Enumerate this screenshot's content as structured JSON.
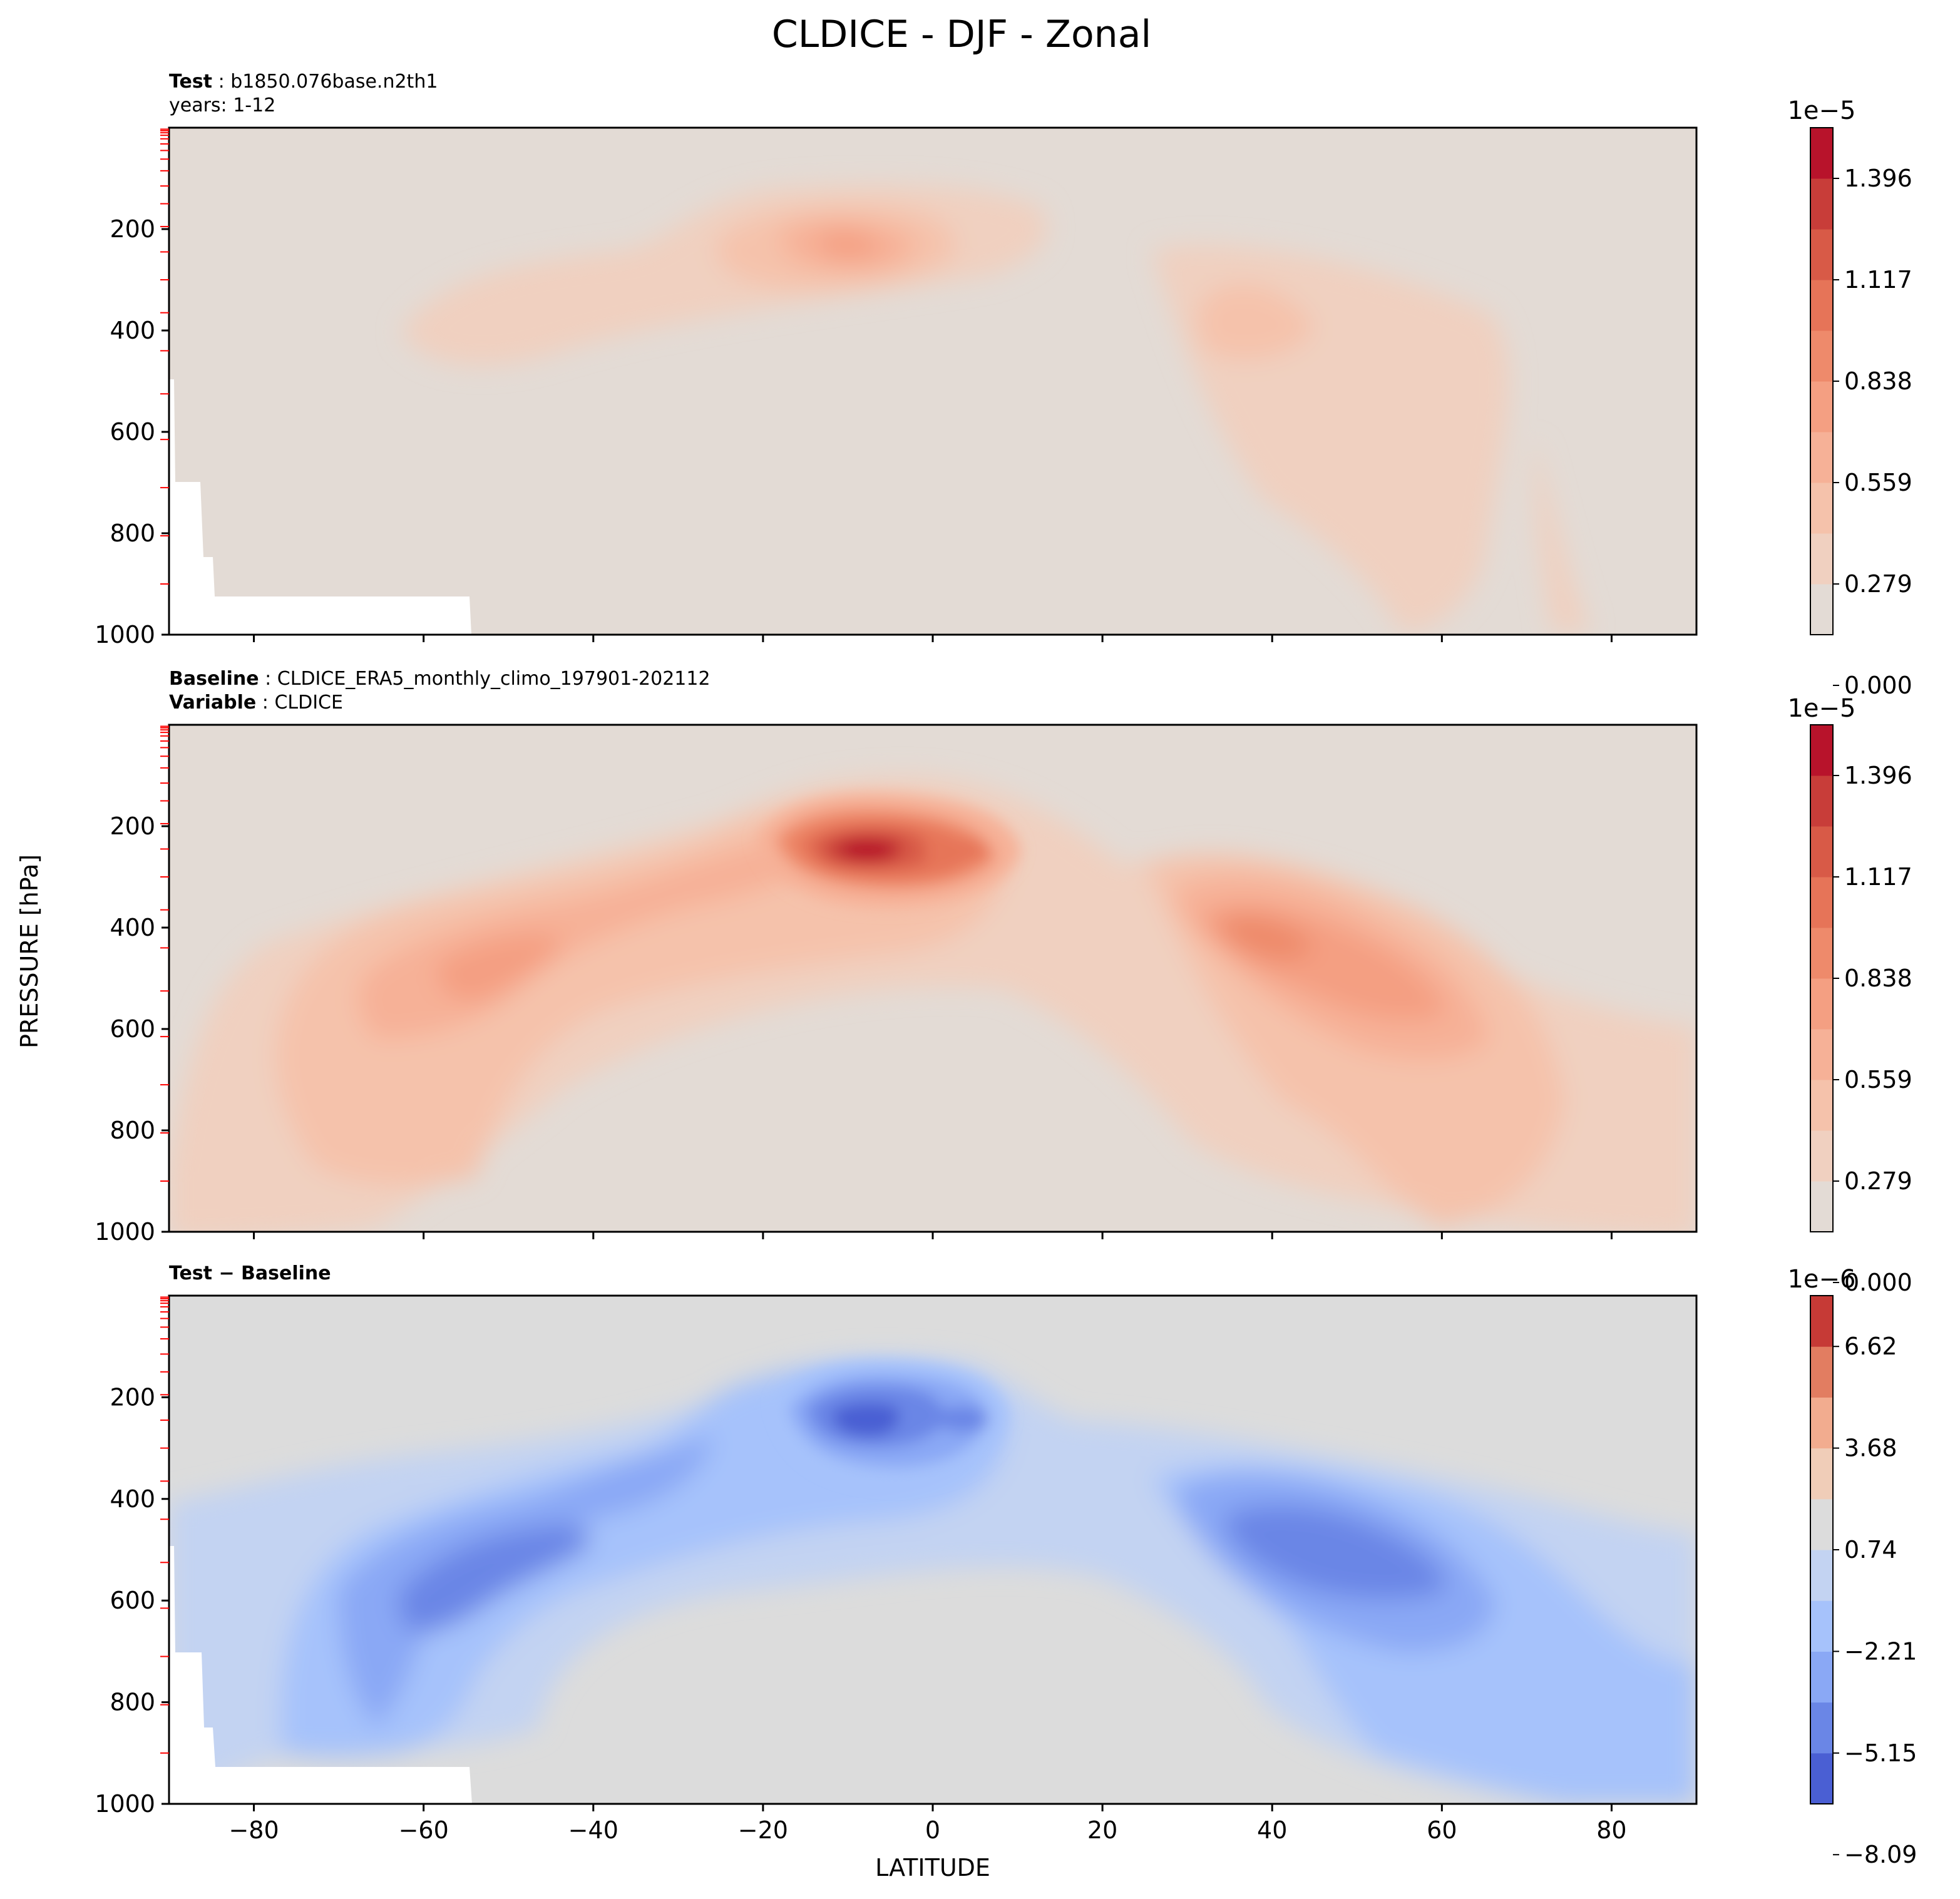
{
  "figure": {
    "title": "CLDICE - DJF - Zonal",
    "ylabel": "PRESSURE [hPa]",
    "xlabel": "LATITUDE"
  },
  "chart_data": [
    {
      "type": "heatmap",
      "panel": "test",
      "label_lines": [
        {
          "key": "Test",
          "value": "b1850.076base.n2th1"
        },
        {
          "key": "",
          "value": "years: 1-12"
        }
      ],
      "x": {
        "label": "",
        "lim": [
          -90,
          90
        ],
        "ticks": [
          -80,
          -60,
          -40,
          -20,
          0,
          20,
          40,
          60,
          80
        ],
        "show_tick_labels": false
      },
      "y": {
        "label": "",
        "lim": [
          0,
          1000
        ],
        "inverted": true,
        "ticks": [
          200,
          400,
          600,
          800,
          1000
        ]
      },
      "colorbar": {
        "exponent": "1e−5",
        "labels": [
          "1.396",
          "1.117",
          "0.838",
          "0.559",
          "0.279",
          "0.000"
        ],
        "colors": [
          "#e3dbd5",
          "#f0d0c0",
          "#f5c2ab",
          "#f6b197",
          "#f49f82",
          "#ee8a6b",
          "#e67458",
          "#d85a47",
          "#c83d39",
          "#b8132b"
        ]
      },
      "features": [
        {
          "desc": "upper-tropospheric maximum near 10S",
          "lat": -8,
          "p": 220,
          "value": 0.7
        },
        {
          "desc": "southern mid-latitude band",
          "lat": -40,
          "p": 400,
          "value": 0.25
        },
        {
          "desc": "northern mid-latitude band",
          "lat": 38,
          "p": 380,
          "value": 0.3
        }
      ]
    },
    {
      "type": "heatmap",
      "panel": "baseline",
      "label_lines": [
        {
          "key": "Baseline",
          "value": "CLDICE_ERA5_monthly_climo_197901-202112"
        },
        {
          "key": "Variable",
          "value": "CLDICE"
        }
      ],
      "x": {
        "label": "",
        "lim": [
          -90,
          90
        ],
        "ticks": [
          -80,
          -60,
          -40,
          -20,
          0,
          20,
          40,
          60,
          80
        ],
        "show_tick_labels": false
      },
      "y": {
        "label": "PRESSURE [hPa]",
        "lim": [
          0,
          1000
        ],
        "inverted": true,
        "ticks": [
          200,
          400,
          600,
          800,
          1000
        ]
      },
      "colorbar": {
        "exponent": "1e−5",
        "labels": [
          "1.396",
          "1.117",
          "0.838",
          "0.559",
          "0.279",
          "0.000"
        ],
        "colors": [
          "#e3dbd5",
          "#f0d0c0",
          "#f5c2ab",
          "#f6b197",
          "#f49f82",
          "#ee8a6b",
          "#e67458",
          "#d85a47",
          "#c83d39",
          "#b8132b"
        ]
      },
      "features": [
        {
          "desc": "upper-tropospheric maximum near 8S",
          "lat": -8,
          "p": 230,
          "value": 1.4
        },
        {
          "desc": "southern mid-latitude maximum",
          "lat": -52,
          "p": 480,
          "value": 0.8
        },
        {
          "desc": "northern mid-latitude maximum",
          "lat": 42,
          "p": 430,
          "value": 0.9
        }
      ]
    },
    {
      "type": "heatmap",
      "panel": "difference",
      "label_lines": [
        {
          "key": "Test − Baseline",
          "value": ""
        }
      ],
      "x": {
        "label": "LATITUDE",
        "lim": [
          -90,
          90
        ],
        "ticks": [
          -80,
          -60,
          -40,
          -20,
          0,
          20,
          40,
          60,
          80
        ],
        "tick_labels": [
          "−80",
          "−60",
          "−40",
          "−20",
          "0",
          "20",
          "40",
          "60",
          "80"
        ]
      },
      "y": {
        "label": "",
        "lim": [
          0,
          1000
        ],
        "inverted": true,
        "ticks": [
          200,
          400,
          600,
          800,
          1000
        ]
      },
      "colorbar": {
        "exponent": "1e−6",
        "labels": [
          "6.62",
          "3.68",
          "0.74",
          "−2.21",
          "−5.15",
          "−8.09"
        ],
        "colors": [
          "#4a5fd3",
          "#6a86e6",
          "#8aa8f5",
          "#a6c2fb",
          "#c3d3f2",
          "#dcdcdc",
          "#f0cdb8",
          "#f2ac8f",
          "#e27d61",
          "#c63a36"
        ]
      },
      "features": [
        {
          "desc": "tropical upper-level negative minimum",
          "lat": -8,
          "p": 250,
          "value": -8.0
        },
        {
          "desc": "southern mid-latitude negative band",
          "lat": -55,
          "p": 500,
          "value": -6.0
        },
        {
          "desc": "northern mid-latitude negative band",
          "lat": 45,
          "p": 450,
          "value": -6.5
        }
      ]
    }
  ]
}
